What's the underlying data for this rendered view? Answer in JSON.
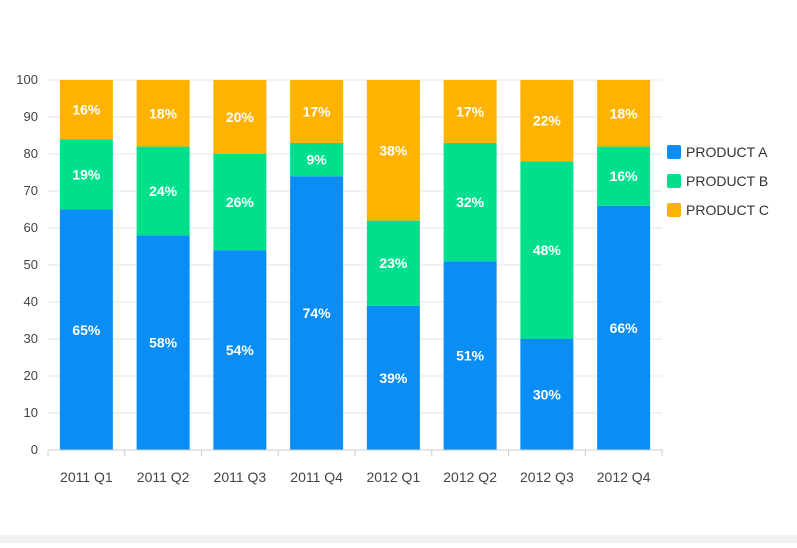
{
  "chart_data": {
    "type": "bar",
    "stacked": true,
    "title": "",
    "xlabel": "",
    "ylabel": "",
    "ylim": [
      0,
      100
    ],
    "yticks": [
      0,
      10,
      20,
      30,
      40,
      50,
      60,
      70,
      80,
      90,
      100
    ],
    "grid": true,
    "legend_position": "right",
    "categories": [
      "2011 Q1",
      "2011 Q2",
      "2011 Q3",
      "2011 Q4",
      "2012 Q1",
      "2012 Q2",
      "2012 Q3",
      "2012 Q4"
    ],
    "series": [
      {
        "name": "PRODUCT A",
        "color": "#0a8ef5",
        "values": [
          65,
          58,
          54,
          74,
          39,
          51,
          30,
          66
        ],
        "labels": [
          "65%",
          "58%",
          "54%",
          "74%",
          "39%",
          "51%",
          "30%",
          "66%"
        ]
      },
      {
        "name": "PRODUCT B",
        "color": "#00e08c",
        "values": [
          19,
          24,
          26,
          9,
          23,
          32,
          48,
          16
        ],
        "labels": [
          "19%",
          "24%",
          "26%",
          "9%",
          "23%",
          "32%",
          "48%",
          "16%"
        ]
      },
      {
        "name": "PRODUCT C",
        "color": "#ffb300",
        "values": [
          16,
          18,
          20,
          17,
          38,
          17,
          22,
          18
        ],
        "labels": [
          "16%",
          "18%",
          "20%",
          "17%",
          "38%",
          "17%",
          "22%",
          "18%"
        ]
      }
    ]
  }
}
